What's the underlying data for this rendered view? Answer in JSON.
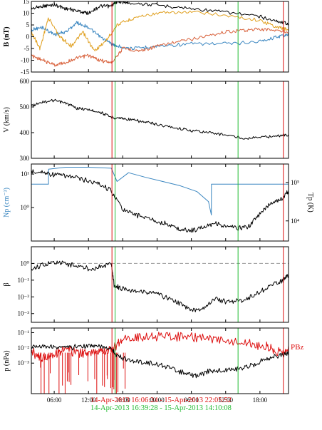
{
  "colors": {
    "black": "#000000",
    "blue": "#3a86c0",
    "orange": "#e0a020",
    "rust": "#d8603a",
    "red": "#dd1111",
    "green": "#22bb33",
    "grey": "#999999"
  },
  "time_axis": {
    "start": "2013-04-14T02:00",
    "end": "2013-04-15T23:00",
    "tick_labels": [
      "06:00",
      "12:00",
      "18:00",
      "00:00",
      "06:00",
      "12:00",
      "18:00"
    ],
    "tick_times": [
      "2013-04-14T06:00",
      "2013-04-14T12:00",
      "2013-04-14T18:00",
      "2013-04-15T00:00",
      "2013-04-15T06:00",
      "2013-04-15T12:00",
      "2013-04-15T18:00"
    ]
  },
  "markers": {
    "red": [
      "2013-04-14T16:06:24",
      "2013-04-15T22:05:52"
    ],
    "green": [
      "2013-04-14T16:39:28",
      "2013-04-15T14:10:08"
    ]
  },
  "footer": {
    "red_interval": "14-Apr-2013 16:06:24 - 15-Apr-2013 22:05:52",
    "green_interval": "14-Apr-2013 16:39:28 - 15-Apr-2013 14:10:08"
  },
  "chart_data": [
    {
      "type": "line",
      "ylabel": "B (nT)",
      "ylim": [
        -15,
        15
      ],
      "yticks": [
        "15",
        "10",
        "5",
        "0",
        "-5",
        "-10",
        "-15"
      ],
      "series": [
        {
          "color": "#000000",
          "x": [
            "2013-04-14T02:00",
            "2013-04-14T04:00",
            "2013-04-14T06:00",
            "2013-04-14T08:00",
            "2013-04-14T10:00",
            "2013-04-14T12:00",
            "2013-04-14T14:00",
            "2013-04-14T16:00",
            "2013-04-14T17:00",
            "2013-04-14T19:00",
            "2013-04-15T00:00",
            "2013-04-15T06:00",
            "2013-04-15T12:00",
            "2013-04-15T18:00",
            "2013-04-15T21:00",
            "2013-04-15T23:00"
          ],
          "y": [
            12,
            13,
            13.5,
            12,
            11,
            10,
            13,
            13,
            15,
            14.5,
            13.5,
            12,
            10.5,
            8.5,
            6.5,
            5.5
          ]
        },
        {
          "color": "#3a86c0",
          "x": [
            "2013-04-14T02:00",
            "2013-04-14T04:00",
            "2013-04-14T06:00",
            "2013-04-14T08:00",
            "2013-04-14T10:00",
            "2013-04-14T12:00",
            "2013-04-14T14:00",
            "2013-04-14T16:00",
            "2013-04-14T17:00",
            "2013-04-14T20:00",
            "2013-04-15T00:00",
            "2013-04-15T06:00",
            "2013-04-15T12:00",
            "2013-04-15T18:00",
            "2013-04-15T21:00",
            "2013-04-15T23:00"
          ],
          "y": [
            3,
            4,
            1,
            2,
            6,
            4,
            0,
            -3,
            -4,
            -5,
            -4,
            -3,
            -3,
            -2,
            0,
            1
          ]
        },
        {
          "color": "#e0a020",
          "x": [
            "2013-04-14T02:00",
            "2013-04-14T03:30",
            "2013-04-14T05:00",
            "2013-04-14T07:00",
            "2013-04-14T09:00",
            "2013-04-14T11:00",
            "2013-04-14T13:00",
            "2013-04-14T15:00",
            "2013-04-14T17:00",
            "2013-04-14T20:00",
            "2013-04-15T00:00",
            "2013-04-15T06:00",
            "2013-04-15T12:00",
            "2013-04-15T18:00",
            "2013-04-15T21:00",
            "2013-04-15T23:00"
          ],
          "y": [
            2,
            -5,
            8,
            0,
            -4,
            2,
            -6,
            -2,
            5,
            8,
            10,
            10.5,
            9,
            7,
            4,
            3
          ]
        },
        {
          "color": "#d8603a",
          "x": [
            "2013-04-14T02:00",
            "2013-04-14T04:00",
            "2013-04-14T06:00",
            "2013-04-14T08:00",
            "2013-04-14T10:00",
            "2013-04-14T12:00",
            "2013-04-14T14:00",
            "2013-04-14T16:00",
            "2013-04-14T18:00",
            "2013-04-14T21:00",
            "2013-04-15T00:00",
            "2013-04-15T04:00",
            "2013-04-15T08:00",
            "2013-04-15T12:00",
            "2013-04-15T16:00",
            "2013-04-15T20:00",
            "2013-04-15T23:00"
          ],
          "y": [
            -8,
            -10,
            -12,
            -11,
            -9,
            -8,
            -10,
            -11,
            -5,
            -6,
            -4,
            -2,
            0,
            2,
            3,
            3,
            2
          ]
        }
      ]
    },
    {
      "type": "line",
      "ylabel": "V (km/s)",
      "ylim": [
        300,
        600
      ],
      "yticks": [
        "600",
        "500",
        "400",
        "300"
      ],
      "series": [
        {
          "color": "#000000",
          "x": [
            "2013-04-14T02:00",
            "2013-04-14T04:00",
            "2013-04-14T06:00",
            "2013-04-14T08:00",
            "2013-04-14T10:00",
            "2013-04-14T12:00",
            "2013-04-14T14:00",
            "2013-04-14T16:00",
            "2013-04-14T18:00",
            "2013-04-14T20:00",
            "2013-04-14T22:00",
            "2013-04-15T00:00",
            "2013-04-15T03:00",
            "2013-04-15T06:00",
            "2013-04-15T09:00",
            "2013-04-15T12:00",
            "2013-04-15T15:00",
            "2013-04-15T18:00",
            "2013-04-15T21:00",
            "2013-04-15T23:00"
          ],
          "y": [
            505,
            520,
            525,
            515,
            495,
            490,
            480,
            460,
            455,
            448,
            440,
            432,
            420,
            408,
            400,
            392,
            378,
            382,
            387,
            392
          ]
        }
      ]
    },
    {
      "type": "line",
      "ylabel": "Np (cm⁻³)",
      "ylabel2": "Tp (K)",
      "yscale": "log",
      "ylim": [
        0.1,
        20
      ],
      "yticks": [
        {
          "v": 10,
          "label": "10¹"
        },
        {
          "v": 1,
          "label": "10⁰"
        }
      ],
      "y2scale": "log",
      "y2lim": [
        3000,
        300000
      ],
      "y2ticks": [
        {
          "v": 100000,
          "label": "10⁵"
        },
        {
          "v": 10000,
          "label": "10⁴"
        }
      ],
      "series": [
        {
          "color": "#3a86c0",
          "axis": "left",
          "x": [
            "2013-04-14T02:00",
            "2013-04-14T05:00",
            "2013-04-14T05:01",
            "2013-04-14T08:00",
            "2013-04-14T12:00",
            "2013-04-14T16:00",
            "2013-04-14T17:00",
            "2013-04-14T19:00",
            "2013-04-14T22:00",
            "2013-04-15T01:00",
            "2013-04-15T04:00",
            "2013-04-15T07:00",
            "2013-04-15T09:00",
            "2013-04-15T09:30",
            "2013-04-15T09:31",
            "2013-04-15T16:00",
            "2013-04-15T23:00"
          ],
          "y": [
            5,
            5,
            14,
            16,
            16,
            15,
            6,
            11,
            8,
            6,
            4.5,
            3,
            1.5,
            0.6,
            5,
            5,
            5
          ]
        },
        {
          "color": "#000000",
          "axis": "right",
          "x": [
            "2013-04-14T02:00",
            "2013-04-14T04:00",
            "2013-04-14T06:00",
            "2013-04-14T08:00",
            "2013-04-14T10:00",
            "2013-04-14T12:00",
            "2013-04-14T14:00",
            "2013-04-14T16:00",
            "2013-04-14T18:00",
            "2013-04-14T20:00",
            "2013-04-14T22:00",
            "2013-04-15T00:00",
            "2013-04-15T02:00",
            "2013-04-15T04:00",
            "2013-04-15T06:00",
            "2013-04-15T08:00",
            "2013-04-15T10:00",
            "2013-04-15T12:00",
            "2013-04-15T14:00",
            "2013-04-15T16:00",
            "2013-04-15T18:00",
            "2013-04-15T20:00",
            "2013-04-15T22:00",
            "2013-04-15T23:00"
          ],
          "y": [
            200000,
            180000,
            160000,
            150000,
            130000,
            110000,
            90000,
            60000,
            20000,
            15000,
            12000,
            10000,
            8000,
            6000,
            5500,
            7000,
            9000,
            7000,
            6500,
            7000,
            15000,
            30000,
            40000,
            60000
          ]
        }
      ]
    },
    {
      "type": "line",
      "ylabel": "β",
      "yscale": "log",
      "ylim": [
        0.0003,
        10
      ],
      "yticks": [
        {
          "v": 1,
          "label": "10⁰"
        },
        {
          "v": 0.1,
          "label": "10⁻¹"
        },
        {
          "v": 0.01,
          "label": "10⁻²"
        },
        {
          "v": 0.001,
          "label": "10⁻³"
        }
      ],
      "reference_line": 1,
      "series": [
        {
          "color": "#000000",
          "x": [
            "2013-04-14T02:00",
            "2013-04-14T04:00",
            "2013-04-14T06:00",
            "2013-04-14T08:00",
            "2013-04-14T10:00",
            "2013-04-14T12:00",
            "2013-04-14T14:00",
            "2013-04-14T16:00",
            "2013-04-14T16:30",
            "2013-04-14T18:00",
            "2013-04-14T20:00",
            "2013-04-14T22:00",
            "2013-04-15T00:00",
            "2013-04-15T02:00",
            "2013-04-15T04:00",
            "2013-04-15T06:00",
            "2013-04-15T08:00",
            "2013-04-15T10:00",
            "2013-04-15T12:00",
            "2013-04-15T14:00",
            "2013-04-15T16:00",
            "2013-04-15T18:00",
            "2013-04-15T20:00",
            "2013-04-15T22:00",
            "2013-04-15T23:00"
          ],
          "y": [
            0.5,
            0.8,
            1.2,
            1.0,
            0.7,
            0.5,
            0.6,
            1.0,
            0.05,
            0.03,
            0.025,
            0.02,
            0.015,
            0.008,
            0.004,
            0.0015,
            0.002,
            0.008,
            0.005,
            0.006,
            0.008,
            0.02,
            0.05,
            0.1,
            0.2
          ]
        }
      ]
    },
    {
      "type": "line",
      "ylabel": "p (nPa)",
      "yscale": "log",
      "ylim": [
        1e-05,
        0.2
      ],
      "yticks": [
        {
          "v": 0.1,
          "label": "10⁻¹"
        },
        {
          "v": 0.01,
          "label": "10⁻²"
        },
        {
          "v": 0.001,
          "label": "10⁻³"
        }
      ],
      "annotation": "P_Bz",
      "series": [
        {
          "color": "#dd1111",
          "x": [
            "2013-04-14T02:00",
            "2013-04-14T04:00",
            "2013-04-14T06:00",
            "2013-04-14T08:00",
            "2013-04-14T10:00",
            "2013-04-14T12:00",
            "2013-04-14T14:00",
            "2013-04-14T16:00",
            "2013-04-14T18:00",
            "2013-04-14T21:00",
            "2013-04-15T00:00",
            "2013-04-15T04:00",
            "2013-04-15T08:00",
            "2013-04-15T12:00",
            "2013-04-15T16:00",
            "2013-04-15T19:00",
            "2013-04-15T21:00",
            "2013-04-15T23:00"
          ],
          "y": [
            0.006,
            0.002,
            0.004,
            0.008,
            0.005,
            0.004,
            0.008,
            0.006,
            0.04,
            0.05,
            0.06,
            0.05,
            0.045,
            0.03,
            0.02,
            0.012,
            0.006,
            0.008
          ]
        },
        {
          "color": "#000000",
          "x": [
            "2013-04-14T02:00",
            "2013-04-14T04:00",
            "2013-04-14T06:00",
            "2013-04-14T08:00",
            "2013-04-14T10:00",
            "2013-04-14T12:00",
            "2013-04-14T14:00",
            "2013-04-14T16:00",
            "2013-04-14T17:00",
            "2013-04-14T19:00",
            "2013-04-14T21:00",
            "2013-04-14T23:00",
            "2013-04-15T01:00",
            "2013-04-15T03:00",
            "2013-04-15T05:00",
            "2013-04-15T07:00",
            "2013-04-15T09:00",
            "2013-04-15T11:00",
            "2013-04-15T13:00",
            "2013-04-15T15:00",
            "2013-04-15T17:00",
            "2013-04-15T19:00",
            "2013-04-15T21:00",
            "2013-04-15T23:00"
          ],
          "y": [
            0.012,
            0.014,
            0.012,
            0.01,
            0.012,
            0.014,
            0.012,
            0.01,
            0.003,
            0.0015,
            0.0012,
            0.001,
            0.0007,
            0.0004,
            0.0002,
            0.00015,
            0.0003,
            0.0003,
            0.0004,
            0.0005,
            0.0008,
            0.002,
            0.003,
            0.004
          ]
        }
      ]
    }
  ]
}
